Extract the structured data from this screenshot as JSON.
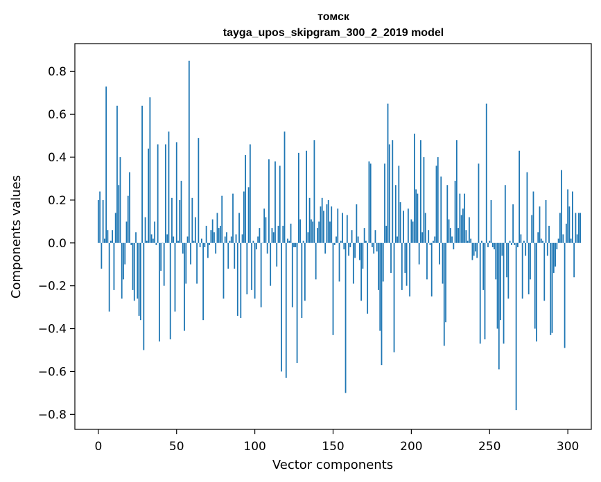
{
  "chart_data": {
    "type": "bar",
    "title": "томск",
    "subtitle": "tayga_upos_skipgram_300_2_2019 model",
    "xlabel": "Vector components",
    "ylabel": "Components values",
    "xlim": [
      -15,
      315
    ],
    "ylim": [
      -0.87,
      0.93
    ],
    "xticks": [
      0,
      50,
      100,
      150,
      200,
      250,
      300
    ],
    "yticks": [
      0.8,
      0.6,
      0.4,
      0.2,
      0.0,
      -0.2,
      -0.4,
      -0.6,
      -0.8
    ],
    "ytick_labels": [
      "0.8",
      "0.6",
      "0.4",
      "0.2",
      "0.0",
      "−0.2",
      "−0.4",
      "−0.6",
      "−0.8"
    ],
    "grid": false,
    "bar_color": "#1f77b4",
    "values": [
      0.2,
      0.24,
      -0.12,
      0.2,
      0.02,
      0.73,
      0.06,
      -0.32,
      0.01,
      0.06,
      -0.22,
      0.14,
      0.64,
      0.27,
      0.4,
      -0.26,
      -0.17,
      -0.1,
      0.1,
      0.22,
      0.33,
      -0.01,
      -0.22,
      -0.27,
      0.05,
      -0.26,
      -0.34,
      -0.36,
      0.64,
      -0.5,
      0.12,
      0.01,
      0.44,
      0.68,
      0.04,
      0.02,
      0.1,
      -0.01,
      0.46,
      -0.46,
      -0.13,
      0.0,
      -0.2,
      0.46,
      0.04,
      0.52,
      -0.45,
      0.21,
      0.03,
      -0.32,
      0.47,
      0.01,
      0.2,
      0.29,
      -0.05,
      -0.41,
      -0.19,
      0.03,
      0.85,
      -0.1,
      0.21,
      0.01,
      0.12,
      -0.19,
      0.49,
      -0.02,
      0.02,
      -0.36,
      -0.02,
      0.08,
      -0.07,
      -0.01,
      0.06,
      0.11,
      0.05,
      -0.05,
      0.14,
      0.07,
      0.08,
      0.22,
      -0.26,
      0.03,
      0.05,
      -0.12,
      0.01,
      0.03,
      0.23,
      -0.12,
      0.04,
      -0.34,
      0.14,
      -0.35,
      0.04,
      0.24,
      0.41,
      -0.24,
      0.26,
      0.46,
      -0.22,
      0.01,
      -0.26,
      -0.03,
      0.03,
      0.07,
      -0.3,
      0.0,
      0.16,
      0.12,
      -0.05,
      0.39,
      -0.2,
      0.07,
      0.05,
      0.38,
      -0.11,
      0.08,
      0.36,
      -0.6,
      0.08,
      0.52,
      -0.63,
      0.02,
      0.01,
      0.09,
      -0.3,
      -0.02,
      -0.02,
      -0.56,
      0.42,
      0.11,
      -0.35,
      0.01,
      -0.27,
      0.43,
      0.05,
      0.21,
      0.11,
      0.1,
      0.48,
      -0.17,
      0.07,
      0.1,
      0.17,
      0.21,
      0.15,
      -0.05,
      0.18,
      0.2,
      0.1,
      0.17,
      -0.43,
      -0.01,
      0.03,
      0.16,
      -0.18,
      0.01,
      0.14,
      -0.03,
      -0.7,
      0.13,
      -0.06,
      -0.02,
      0.06,
      -0.19,
      -0.07,
      0.18,
      0.03,
      -0.08,
      -0.27,
      -0.12,
      0.07,
      0.01,
      -0.33,
      0.38,
      0.37,
      -0.02,
      -0.05,
      0.06,
      -0.04,
      -0.22,
      -0.41,
      -0.57,
      -0.18,
      0.37,
      0.08,
      0.65,
      0.46,
      -0.14,
      0.48,
      -0.51,
      0.27,
      0.03,
      0.36,
      0.19,
      -0.22,
      0.15,
      -0.14,
      -0.2,
      0.16,
      -0.25,
      0.11,
      0.1,
      0.51,
      0.25,
      0.23,
      -0.1,
      0.48,
      0.05,
      0.4,
      0.14,
      -0.17,
      0.06,
      -0.01,
      -0.25,
      0.01,
      0.03,
      0.36,
      0.4,
      -0.1,
      0.31,
      -0.19,
      -0.48,
      -0.37,
      0.27,
      0.11,
      0.07,
      0.03,
      -0.03,
      0.29,
      0.48,
      0.07,
      0.23,
      0.13,
      0.16,
      0.23,
      0.06,
      0.01,
      0.12,
      0.02,
      -0.08,
      -0.06,
      -0.04,
      -0.07,
      0.37,
      -0.47,
      0.01,
      -0.22,
      -0.45,
      0.65,
      -0.02,
      0.01,
      0.2,
      -0.02,
      -0.03,
      -0.17,
      -0.4,
      -0.59,
      -0.36,
      -0.06,
      -0.47,
      0.27,
      -0.16,
      -0.26,
      0.01,
      -0.01,
      0.18,
      -0.01,
      -0.78,
      -0.02,
      0.43,
      0.04,
      -0.26,
      0.01,
      -0.06,
      0.33,
      -0.24,
      -0.17,
      0.13,
      0.24,
      -0.4,
      -0.46,
      0.05,
      0.17,
      0.02,
      0.01,
      -0.27,
      0.2,
      -0.06,
      0.08,
      -0.43,
      -0.42,
      -0.14,
      -0.11,
      -0.03,
      0.02,
      0.14,
      0.34,
      0.04,
      -0.49,
      0.09,
      0.25,
      0.17,
      0.02,
      0.24,
      -0.16,
      0.14,
      0.04,
      0.14,
      0.14
    ]
  }
}
